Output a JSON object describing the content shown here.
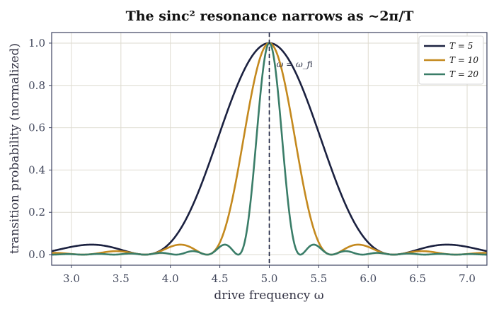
{
  "chart_data": {
    "type": "line",
    "title": "The sinc² resonance narrows as ~2π/T",
    "xlabel": "drive frequency  ω",
    "ylabel": "transition probability  (normalized)",
    "xlim": [
      2.8,
      7.2
    ],
    "ylim": [
      -0.05,
      1.05
    ],
    "xticks": [
      "3.0",
      "3.5",
      "4.0",
      "4.5",
      "5.0",
      "5.5",
      "6.0",
      "6.5",
      "7.0"
    ],
    "yticks": [
      "0.0",
      "0.2",
      "0.4",
      "0.6",
      "0.8",
      "1.0"
    ],
    "grid": true,
    "legend_position": "top-right",
    "resonance": {
      "omega_fi": 5.0,
      "label": "ω = ω_fi"
    },
    "series": [
      {
        "name": "T = 5",
        "T": 5,
        "color": "#1b2140"
      },
      {
        "name": "T = 10",
        "T": 10,
        "color": "#c4891e"
      },
      {
        "name": "T = 20",
        "T": 20,
        "color": "#3a7d68"
      }
    ],
    "colors": {
      "frame": "#3c4260",
      "grid": "#dedbd0",
      "vline": "#1b2140"
    }
  }
}
